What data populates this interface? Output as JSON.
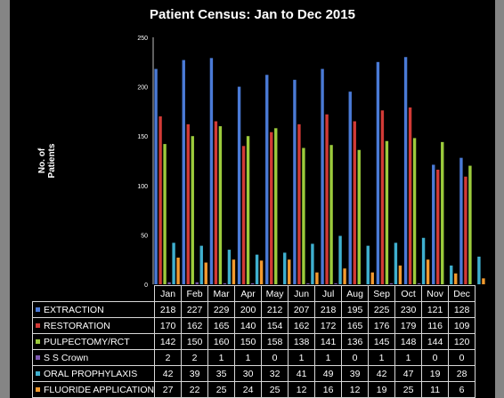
{
  "chart_data": {
    "type": "bar",
    "title": "Patient Census: Jan to Dec 2015",
    "ylabel": "No. of Patients",
    "xlabel": "",
    "ylim": [
      0,
      250
    ],
    "yticks": [
      "0",
      "50",
      "100",
      "150",
      "200",
      "250"
    ],
    "grid": false,
    "legend": "data table below chart",
    "categories": [
      "Jan",
      "Feb",
      "Mar",
      "Apr",
      "May",
      "Jun",
      "Jul",
      "Aug",
      "Sep",
      "Oct",
      "Nov",
      "Dec"
    ],
    "series": [
      {
        "name": "EXTRACTION",
        "color": "#4a7ad6",
        "values": [
          218,
          227,
          229,
          200,
          212,
          207,
          218,
          195,
          225,
          230,
          121,
          128
        ]
      },
      {
        "name": "RESTORATION",
        "color": "#d23a36",
        "values": [
          170,
          162,
          165,
          140,
          154,
          162,
          172,
          165,
          176,
          179,
          116,
          109
        ]
      },
      {
        "name": "PULPECTOMY/RCT",
        "color": "#9ccb3c",
        "values": [
          142,
          150,
          160,
          150,
          158,
          138,
          141,
          136,
          145,
          148,
          144,
          120
        ]
      },
      {
        "name": "S S Crown",
        "color": "#7c58b0",
        "values": [
          2,
          2,
          1,
          1,
          0,
          1,
          1,
          0,
          1,
          1,
          0,
          0
        ]
      },
      {
        "name": "ORAL PROPHYLAXIS",
        "color": "#3fb0cf",
        "values": [
          42,
          39,
          35,
          30,
          32,
          41,
          49,
          39,
          42,
          47,
          19,
          28
        ]
      },
      {
        "name": "FLUORIDE APPLICATION",
        "color": "#f39a2e",
        "values": [
          27,
          22,
          25,
          24,
          25,
          12,
          16,
          12,
          19,
          25,
          11,
          6
        ]
      }
    ]
  }
}
